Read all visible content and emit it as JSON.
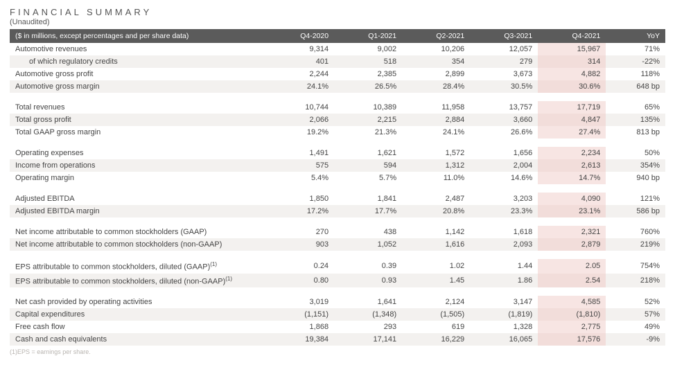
{
  "title": "FINANCIAL SUMMARY",
  "subtitle": "(Unaudited)",
  "columns": {
    "label": "($ in millions, except percentages and per share data)",
    "q4_2020": "Q4-2020",
    "q1_2021": "Q1-2021",
    "q2_2021": "Q2-2021",
    "q3_2021": "Q3-2021",
    "q4_2021": "Q4-2021",
    "yoy": "YoY"
  },
  "rows": [
    {
      "label": "Automotive revenues",
      "v": [
        "9,314",
        "9,002",
        "10,206",
        "12,057",
        "15,967",
        "71%"
      ],
      "indent": false
    },
    {
      "label": "of which regulatory credits",
      "v": [
        "401",
        "518",
        "354",
        "279",
        "314",
        "-22%"
      ],
      "indent": true
    },
    {
      "label": "Automotive gross profit",
      "v": [
        "2,244",
        "2,385",
        "2,899",
        "3,673",
        "4,882",
        "118%"
      ],
      "indent": false
    },
    {
      "label": "Automotive gross margin",
      "v": [
        "24.1%",
        "26.5%",
        "28.4%",
        "30.5%",
        "30.6%",
        "648 bp"
      ],
      "indent": false
    },
    {
      "spacer": true
    },
    {
      "label": "Total revenues",
      "v": [
        "10,744",
        "10,389",
        "11,958",
        "13,757",
        "17,719",
        "65%"
      ],
      "indent": false
    },
    {
      "label": "Total gross profit",
      "v": [
        "2,066",
        "2,215",
        "2,884",
        "3,660",
        "4,847",
        "135%"
      ],
      "indent": false
    },
    {
      "label": "Total GAAP gross margin",
      "v": [
        "19.2%",
        "21.3%",
        "24.1%",
        "26.6%",
        "27.4%",
        "813 bp"
      ],
      "indent": false
    },
    {
      "spacer": true
    },
    {
      "label": "Operating expenses",
      "v": [
        "1,491",
        "1,621",
        "1,572",
        "1,656",
        "2,234",
        "50%"
      ],
      "indent": false
    },
    {
      "label": "Income from operations",
      "v": [
        "575",
        "594",
        "1,312",
        "2,004",
        "2,613",
        "354%"
      ],
      "indent": false
    },
    {
      "label": "Operating margin",
      "v": [
        "5.4%",
        "5.7%",
        "11.0%",
        "14.6%",
        "14.7%",
        "940 bp"
      ],
      "indent": false
    },
    {
      "spacer": true
    },
    {
      "label": "Adjusted EBITDA",
      "v": [
        "1,850",
        "1,841",
        "2,487",
        "3,203",
        "4,090",
        "121%"
      ],
      "indent": false
    },
    {
      "label": "Adjusted EBITDA margin",
      "v": [
        "17.2%",
        "17.7%",
        "20.8%",
        "23.3%",
        "23.1%",
        "586 bp"
      ],
      "indent": false
    },
    {
      "spacer": true
    },
    {
      "label": "Net income attributable to common stockholders (GAAP)",
      "v": [
        "270",
        "438",
        "1,142",
        "1,618",
        "2,321",
        "760%"
      ],
      "indent": false
    },
    {
      "label": "Net income attributable to common stockholders (non-GAAP)",
      "v": [
        "903",
        "1,052",
        "1,616",
        "2,093",
        "2,879",
        "219%"
      ],
      "indent": false
    },
    {
      "spacer": true
    },
    {
      "label": "EPS attributable to common stockholders, diluted (GAAP)",
      "sup": "(1)",
      "v": [
        "0.24",
        "0.39",
        "1.02",
        "1.44",
        "2.05",
        "754%"
      ],
      "indent": false
    },
    {
      "label": "EPS attributable to common stockholders, diluted (non-GAAP)",
      "sup": "(1)",
      "v": [
        "0.80",
        "0.93",
        "1.45",
        "1.86",
        "2.54",
        "218%"
      ],
      "indent": false
    },
    {
      "spacer": true
    },
    {
      "label": "Net cash provided by operating activities",
      "v": [
        "3,019",
        "1,641",
        "2,124",
        "3,147",
        "4,585",
        "52%"
      ],
      "indent": false
    },
    {
      "label": "Capital expenditures",
      "v": [
        "(1,151)",
        "(1,348)",
        "(1,505)",
        "(1,819)",
        "(1,810)",
        "57%"
      ],
      "indent": false
    },
    {
      "label": "Free cash flow",
      "v": [
        "1,868",
        "293",
        "619",
        "1,328",
        "2,775",
        "49%"
      ],
      "indent": false
    },
    {
      "label": "Cash and cash equivalents",
      "v": [
        "19,384",
        "17,141",
        "16,229",
        "16,065",
        "17,576",
        "-9%"
      ],
      "indent": false
    }
  ],
  "footnote": "(1)EPS = earnings per share.",
  "style": {
    "highlight_col_index": 4,
    "header_bg": "#5b5b5b",
    "header_fg": "#ffffff",
    "row_even_bg": "#ffffff",
    "row_odd_bg": "#f3f1ef",
    "highlight_bg_even": "#f7e5e3",
    "highlight_bg_odd": "#f2ddda",
    "text_color": "#444444",
    "title_color": "#555555",
    "font_size_body": 11,
    "font_size_title": 13,
    "title_letter_spacing": 4
  }
}
